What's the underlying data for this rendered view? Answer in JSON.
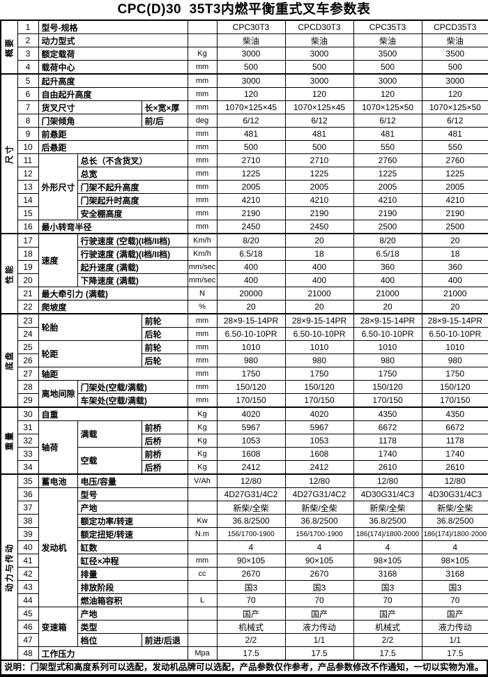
{
  "title": "CPC(D)30  35T3内燃平衡重式叉车参数表",
  "footer_note": "说明：门架型式和高度系列可以选配，发动机品牌可以选配，产品参数仅作参考，产品参数修改不作通知，一切以实物为准。",
  "models": [
    "CPC30T3",
    "CPCD30T3",
    "CPC35T3",
    "CPCD35T3"
  ],
  "side_groups": [
    {
      "label": "概要",
      "from": 1,
      "to": 4
    },
    {
      "label": "尺寸",
      "from": 5,
      "to": 16
    },
    {
      "label": "性能",
      "from": 17,
      "to": 22
    },
    {
      "label": "底盘",
      "from": 23,
      "to": 29
    },
    {
      "label": "重量",
      "from": 30,
      "to": 34
    },
    {
      "label": "动力与传动",
      "from": 35,
      "to": 48
    }
  ],
  "rows": [
    {
      "n": 1,
      "name": [
        {
          "t": "型号-规格",
          "c": 3
        }
      ],
      "unit": "",
      "values": [
        "CPC30T3",
        "CPCD30T3",
        "CPC35T3",
        "CPCD35T3"
      ]
    },
    {
      "n": 2,
      "name": [
        {
          "t": "动力型式",
          "c": 3
        }
      ],
      "unit": "",
      "values": [
        "柴油",
        "柴油",
        "柴油",
        "柴油"
      ]
    },
    {
      "n": 3,
      "name": [
        {
          "t": "额定载荷",
          "c": 3
        }
      ],
      "unit": "Kg",
      "values": [
        "3000",
        "3000",
        "3500",
        "3500"
      ]
    },
    {
      "n": 4,
      "name": [
        {
          "t": "载荷中心",
          "c": 3
        }
      ],
      "unit": "mm",
      "values": [
        "500",
        "500",
        "500",
        "500"
      ]
    },
    {
      "n": 5,
      "name": [
        {
          "t": "起升高度",
          "c": 3
        }
      ],
      "unit": "mm",
      "values": [
        "3000",
        "3000",
        "3000",
        "3000"
      ]
    },
    {
      "n": 6,
      "name": [
        {
          "t": "自由起升高度",
          "c": 3
        }
      ],
      "unit": "mm",
      "values": [
        "120",
        "120",
        "120",
        "120"
      ]
    },
    {
      "n": 7,
      "name": [
        {
          "t": "货叉尺寸",
          "c": 2
        },
        {
          "t": "长×宽×厚"
        }
      ],
      "unit": "mm",
      "values": [
        "1070×125×45",
        "1070×125×45",
        "1070×125×50",
        "1070×125×50"
      ]
    },
    {
      "n": 8,
      "name": [
        {
          "t": "门架倾角",
          "c": 2
        },
        {
          "t": "前/后"
        }
      ],
      "unit": "deg",
      "values": [
        "6/12",
        "6/12",
        "6/12",
        "6/12"
      ]
    },
    {
      "n": 9,
      "name": [
        {
          "t": "前悬距",
          "c": 3
        }
      ],
      "unit": "mm",
      "values": [
        "481",
        "481",
        "481",
        "481"
      ]
    },
    {
      "n": 10,
      "name": [
        {
          "t": "后悬距",
          "c": 3
        }
      ],
      "unit": "mm",
      "values": [
        "500",
        "500",
        "550",
        "550"
      ]
    },
    {
      "n": 11,
      "name": [
        {
          "t": "外形尺寸",
          "r": 5
        },
        {
          "t": "总长（不含货叉）",
          "c": 2
        }
      ],
      "unit": "mm",
      "values": [
        "2710",
        "2710",
        "2760",
        "2760"
      ]
    },
    {
      "n": 12,
      "name": [
        {
          "t": "总宽",
          "c": 2
        }
      ],
      "unit": "mm",
      "values": [
        "1225",
        "1225",
        "1225",
        "1225"
      ]
    },
    {
      "n": 13,
      "name": [
        {
          "t": "门架不起升高度",
          "c": 2
        }
      ],
      "unit": "mm",
      "values": [
        "2005",
        "2005",
        "2005",
        "2005"
      ]
    },
    {
      "n": 14,
      "name": [
        {
          "t": "门架起升时高度",
          "c": 2
        }
      ],
      "unit": "mm",
      "values": [
        "4210",
        "4210",
        "4210",
        "4210"
      ]
    },
    {
      "n": 15,
      "name": [
        {
          "t": "安全棚高度",
          "c": 2
        }
      ],
      "unit": "mm",
      "values": [
        "2190",
        "2190",
        "2190",
        "2190"
      ]
    },
    {
      "n": 16,
      "name": [
        {
          "t": "最小转弯半径",
          "c": 3
        }
      ],
      "unit": "mm",
      "values": [
        "2450",
        "2450",
        "2500",
        "2500"
      ]
    },
    {
      "n": 17,
      "name": [
        {
          "t": "速度",
          "r": 4
        },
        {
          "t": "行驶速度 (空载)(I档/II档)",
          "c": 2
        }
      ],
      "unit": "Km/h",
      "values": [
        "8/20",
        "20",
        "8/20",
        "20"
      ]
    },
    {
      "n": 18,
      "name": [
        {
          "t": "行驶速度 (满载)(I档/II档)",
          "c": 2
        }
      ],
      "unit": "Km/h",
      "values": [
        "6.5/18",
        "18",
        "6.5/18",
        "18"
      ]
    },
    {
      "n": 19,
      "name": [
        {
          "t": "起升速度 (满载)",
          "c": 2
        }
      ],
      "unit": "mm/sec",
      "values": [
        "400",
        "400",
        "360",
        "360"
      ]
    },
    {
      "n": 20,
      "name": [
        {
          "t": "下降速度 (满载)",
          "c": 2
        }
      ],
      "unit": "mm/sec",
      "values": [
        "400",
        "400",
        "400",
        "400"
      ]
    },
    {
      "n": 21,
      "name": [
        {
          "t": "最大牵引力 (满载)",
          "c": 3
        }
      ],
      "unit": "N",
      "values": [
        "20000",
        "21000",
        "21000",
        "21000"
      ]
    },
    {
      "n": 22,
      "name": [
        {
          "t": "爬坡度",
          "c": 3
        }
      ],
      "unit": "%",
      "values": [
        "20",
        "20",
        "20",
        "20"
      ]
    },
    {
      "n": 23,
      "name": [
        {
          "t": "轮胎",
          "c": 2,
          "r": 2
        },
        {
          "t": "前轮"
        }
      ],
      "unit": "mm",
      "values": [
        "28×9-15-14PR",
        "28×9-15-14PR",
        "28×9-15-14PR",
        "28×9-15-14PR"
      ]
    },
    {
      "n": 24,
      "name": [
        {
          "t": "后轮"
        }
      ],
      "unit": "mm",
      "values": [
        "6.50-10-10PR",
        "6.50-10-10PR",
        "6.50-10-10PR",
        "6.50-10-10PR"
      ]
    },
    {
      "n": 25,
      "name": [
        {
          "t": "轮距",
          "c": 2,
          "r": 2
        },
        {
          "t": "前轮"
        }
      ],
      "unit": "mm",
      "values": [
        "1010",
        "1010",
        "1010",
        "1010"
      ]
    },
    {
      "n": 26,
      "name": [
        {
          "t": "后轮"
        }
      ],
      "unit": "mm",
      "values": [
        "980",
        "980",
        "980",
        "980"
      ]
    },
    {
      "n": 27,
      "name": [
        {
          "t": "轴距",
          "c": 3
        }
      ],
      "unit": "mm",
      "values": [
        "1750",
        "1750",
        "1750",
        "1750"
      ]
    },
    {
      "n": 28,
      "name": [
        {
          "t": "离地间隙",
          "r": 2
        },
        {
          "t": "门架处(空载/满载)",
          "c": 2
        }
      ],
      "unit": "mm",
      "values": [
        "150/120",
        "150/120",
        "150/120",
        "150/120"
      ]
    },
    {
      "n": 29,
      "name": [
        {
          "t": "车架处(空载/满载)",
          "c": 2
        }
      ],
      "unit": "mm",
      "values": [
        "170/150",
        "170/150",
        "170/150",
        "170/150"
      ]
    },
    {
      "n": 30,
      "name": [
        {
          "t": "自重",
          "c": 3
        }
      ],
      "unit": "Kg",
      "values": [
        "4020",
        "4020",
        "4350",
        "4350"
      ]
    },
    {
      "n": 31,
      "name": [
        {
          "t": "轴荷",
          "r": 4
        },
        {
          "t": "满载",
          "r": 2
        },
        {
          "t": "前桥"
        }
      ],
      "unit": "Kg",
      "values": [
        "5967",
        "5967",
        "6672",
        "6672"
      ]
    },
    {
      "n": 32,
      "name": [
        {
          "t": "后桥"
        }
      ],
      "unit": "Kg",
      "values": [
        "1053",
        "1053",
        "1178",
        "1178"
      ]
    },
    {
      "n": 33,
      "name": [
        {
          "t": "空载",
          "r": 2
        },
        {
          "t": "前桥"
        }
      ],
      "unit": "Kg",
      "values": [
        "1608",
        "1608",
        "1740",
        "1740"
      ]
    },
    {
      "n": 34,
      "name": [
        {
          "t": "后桥"
        }
      ],
      "unit": "Kg",
      "values": [
        "2412",
        "2412",
        "2610",
        "2610"
      ]
    },
    {
      "n": 35,
      "name": [
        {
          "t": "蓄电池"
        },
        {
          "t": "电压/容量",
          "c": 2
        }
      ],
      "unit": "V/Ah",
      "values": [
        "12/80",
        "12/80",
        "12/80",
        "12/80"
      ]
    },
    {
      "n": 36,
      "name": [
        {
          "t": "发动机",
          "r": 9
        },
        {
          "t": "型号",
          "c": 2
        }
      ],
      "unit": "",
      "values": [
        "4D27G31/4C2",
        "4D27G31/4C2",
        "4D30G31/4C3",
        "4D30G31/4C3"
      ]
    },
    {
      "n": 37,
      "name": [
        {
          "t": "产地",
          "c": 2
        }
      ],
      "unit": "",
      "values": [
        "新柴/全柴",
        "新柴/全柴",
        "新柴/全柴",
        "新柴/全柴"
      ]
    },
    {
      "n": 38,
      "name": [
        {
          "t": "额定功率/转速",
          "c": 2
        }
      ],
      "unit": "Kw",
      "values": [
        "36.8/2500",
        "36.8/2500",
        "36.8/2500",
        "36.8/2500"
      ]
    },
    {
      "n": 39,
      "name": [
        {
          "t": "额定扭矩/转速",
          "c": 2
        }
      ],
      "unit": "N.m",
      "values": [
        "156/1700-1900",
        "156/1700-1900",
        "186(174)/1800-2000",
        "186(174)/1800-2000"
      ],
      "small_values": true
    },
    {
      "n": 40,
      "name": [
        {
          "t": "缸数",
          "c": 2
        }
      ],
      "unit": "",
      "values": [
        "4",
        "4",
        "4",
        "4"
      ]
    },
    {
      "n": 41,
      "name": [
        {
          "t": "缸径×冲程",
          "c": 2
        }
      ],
      "unit": "mm",
      "values": [
        "90×105",
        "90×105",
        "98×105",
        "98×105"
      ]
    },
    {
      "n": 42,
      "name": [
        {
          "t": "排量",
          "c": 2
        }
      ],
      "unit": "cc",
      "values": [
        "2670",
        "2670",
        "3168",
        "3168"
      ]
    },
    {
      "n": 43,
      "name": [
        {
          "t": "排放阶段",
          "c": 2
        }
      ],
      "unit": "",
      "values": [
        "国3",
        "国3",
        "国3",
        "国3"
      ]
    },
    {
      "n": 44,
      "name": [
        {
          "t": "燃油箱容积",
          "c": 2
        }
      ],
      "unit": "L",
      "values": [
        "70",
        "70",
        "70",
        "70"
      ]
    },
    {
      "n": 45,
      "name": [
        {
          "t": "变速箱",
          "r": 3
        },
        {
          "t": "产地",
          "c": 2
        }
      ],
      "unit": "",
      "values": [
        "国产",
        "国产",
        "国产",
        "国产"
      ]
    },
    {
      "n": 46,
      "name": [
        {
          "t": "类型",
          "c": 2
        }
      ],
      "unit": "",
      "values": [
        "机械式",
        "液力传动",
        "机械式",
        "液力传动"
      ]
    },
    {
      "n": 47,
      "name": [
        {
          "t": "档位"
        },
        {
          "t": "前进/后退"
        }
      ],
      "unit": "",
      "values": [
        "2/2",
        "1/1",
        "2/2",
        "1/1"
      ]
    },
    {
      "n": 48,
      "name": [
        {
          "t": "工作压力",
          "c": 3
        }
      ],
      "unit": "Mpa",
      "values": [
        "17.5",
        "17.5",
        "17.5",
        "17.5"
      ]
    }
  ]
}
